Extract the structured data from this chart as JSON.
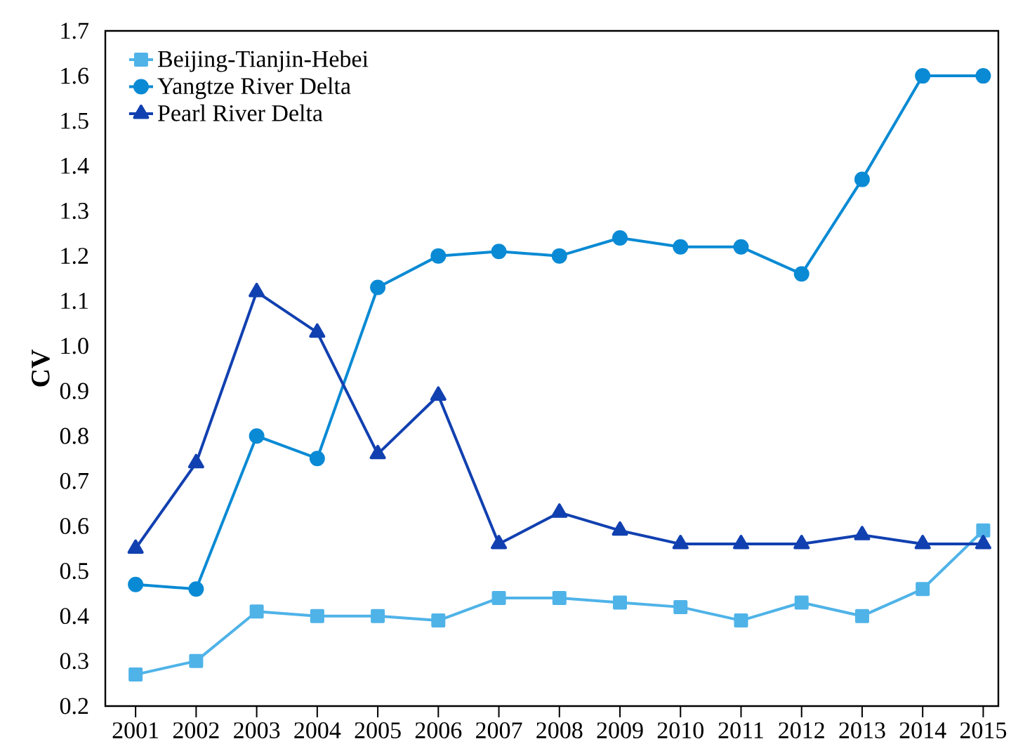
{
  "chart_data": {
    "type": "line",
    "ylabel": "CV",
    "x": [
      2001,
      2002,
      2003,
      2004,
      2005,
      2006,
      2007,
      2008,
      2009,
      2010,
      2011,
      2012,
      2013,
      2014,
      2015
    ],
    "xlim": [
      2000.5,
      2015.25
    ],
    "xticks": [
      2001,
      2002,
      2003,
      2004,
      2005,
      2006,
      2007,
      2008,
      2009,
      2010,
      2011,
      2012,
      2013,
      2014,
      2015
    ],
    "ylim": [
      0.2,
      1.7
    ],
    "yticks": [
      0.2,
      0.3,
      0.4,
      0.5,
      0.6,
      0.7,
      0.8,
      0.9,
      {
        "value": 1.0,
        "label": "1.0"
      },
      1.1,
      1.2,
      1.3,
      1.4,
      1.5,
      1.6,
      1.7
    ],
    "grid": false,
    "legend": "top left",
    "series": [
      {
        "name": "Beijing-Tianjin-Hebei",
        "color": "#4fb3e8",
        "marker": "square",
        "values": [
          0.27,
          0.3,
          0.41,
          0.4,
          0.4,
          0.39,
          0.44,
          0.44,
          0.43,
          0.42,
          0.39,
          0.43,
          0.4,
          0.46,
          0.59
        ]
      },
      {
        "name": "Yangtze River Delta",
        "color": "#0a8ad4",
        "marker": "circle",
        "values": [
          0.47,
          0.46,
          0.8,
          0.75,
          1.13,
          1.2,
          1.21,
          1.2,
          1.24,
          1.22,
          1.22,
          1.16,
          1.37,
          1.6,
          1.6
        ]
      },
      {
        "name": "Pearl River Delta",
        "color": "#1140b0",
        "marker": "triangle",
        "values": [
          0.55,
          0.74,
          1.12,
          1.03,
          0.76,
          0.89,
          0.56,
          0.63,
          0.59,
          0.56,
          0.56,
          0.56,
          0.58,
          0.56,
          0.56
        ]
      }
    ]
  }
}
